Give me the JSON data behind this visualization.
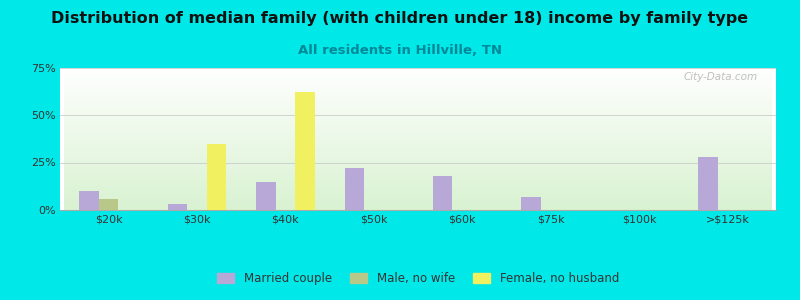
{
  "title": "Distribution of median family (with children under 18) income by family type",
  "subtitle": "All residents in Hillville, TN",
  "categories": [
    "$20k",
    "$30k",
    "$40k",
    "$50k",
    "$60k",
    "$75k",
    "$100k",
    ">$125k"
  ],
  "married_couple": [
    10,
    3,
    15,
    22,
    18,
    7,
    0,
    28
  ],
  "male_no_wife": [
    6,
    0,
    0,
    0,
    0,
    0,
    0,
    0
  ],
  "female_no_husband": [
    0,
    35,
    62,
    0,
    0,
    0,
    0,
    0
  ],
  "married_color": "#b8a8d8",
  "male_color": "#b8c888",
  "female_color": "#f0f060",
  "bg_outer": "#00e8e8",
  "ylim": [
    0,
    75
  ],
  "yticks": [
    0,
    25,
    50,
    75
  ],
  "ytick_labels": [
    "0%",
    "25%",
    "50%",
    "75%"
  ],
  "bar_width": 0.22,
  "grid_color": "#cccccc",
  "title_fontsize": 11.5,
  "subtitle_fontsize": 9.5,
  "subtitle_color": "#008899",
  "tick_fontsize": 8,
  "legend_fontsize": 8.5,
  "watermark": "City-Data.com"
}
